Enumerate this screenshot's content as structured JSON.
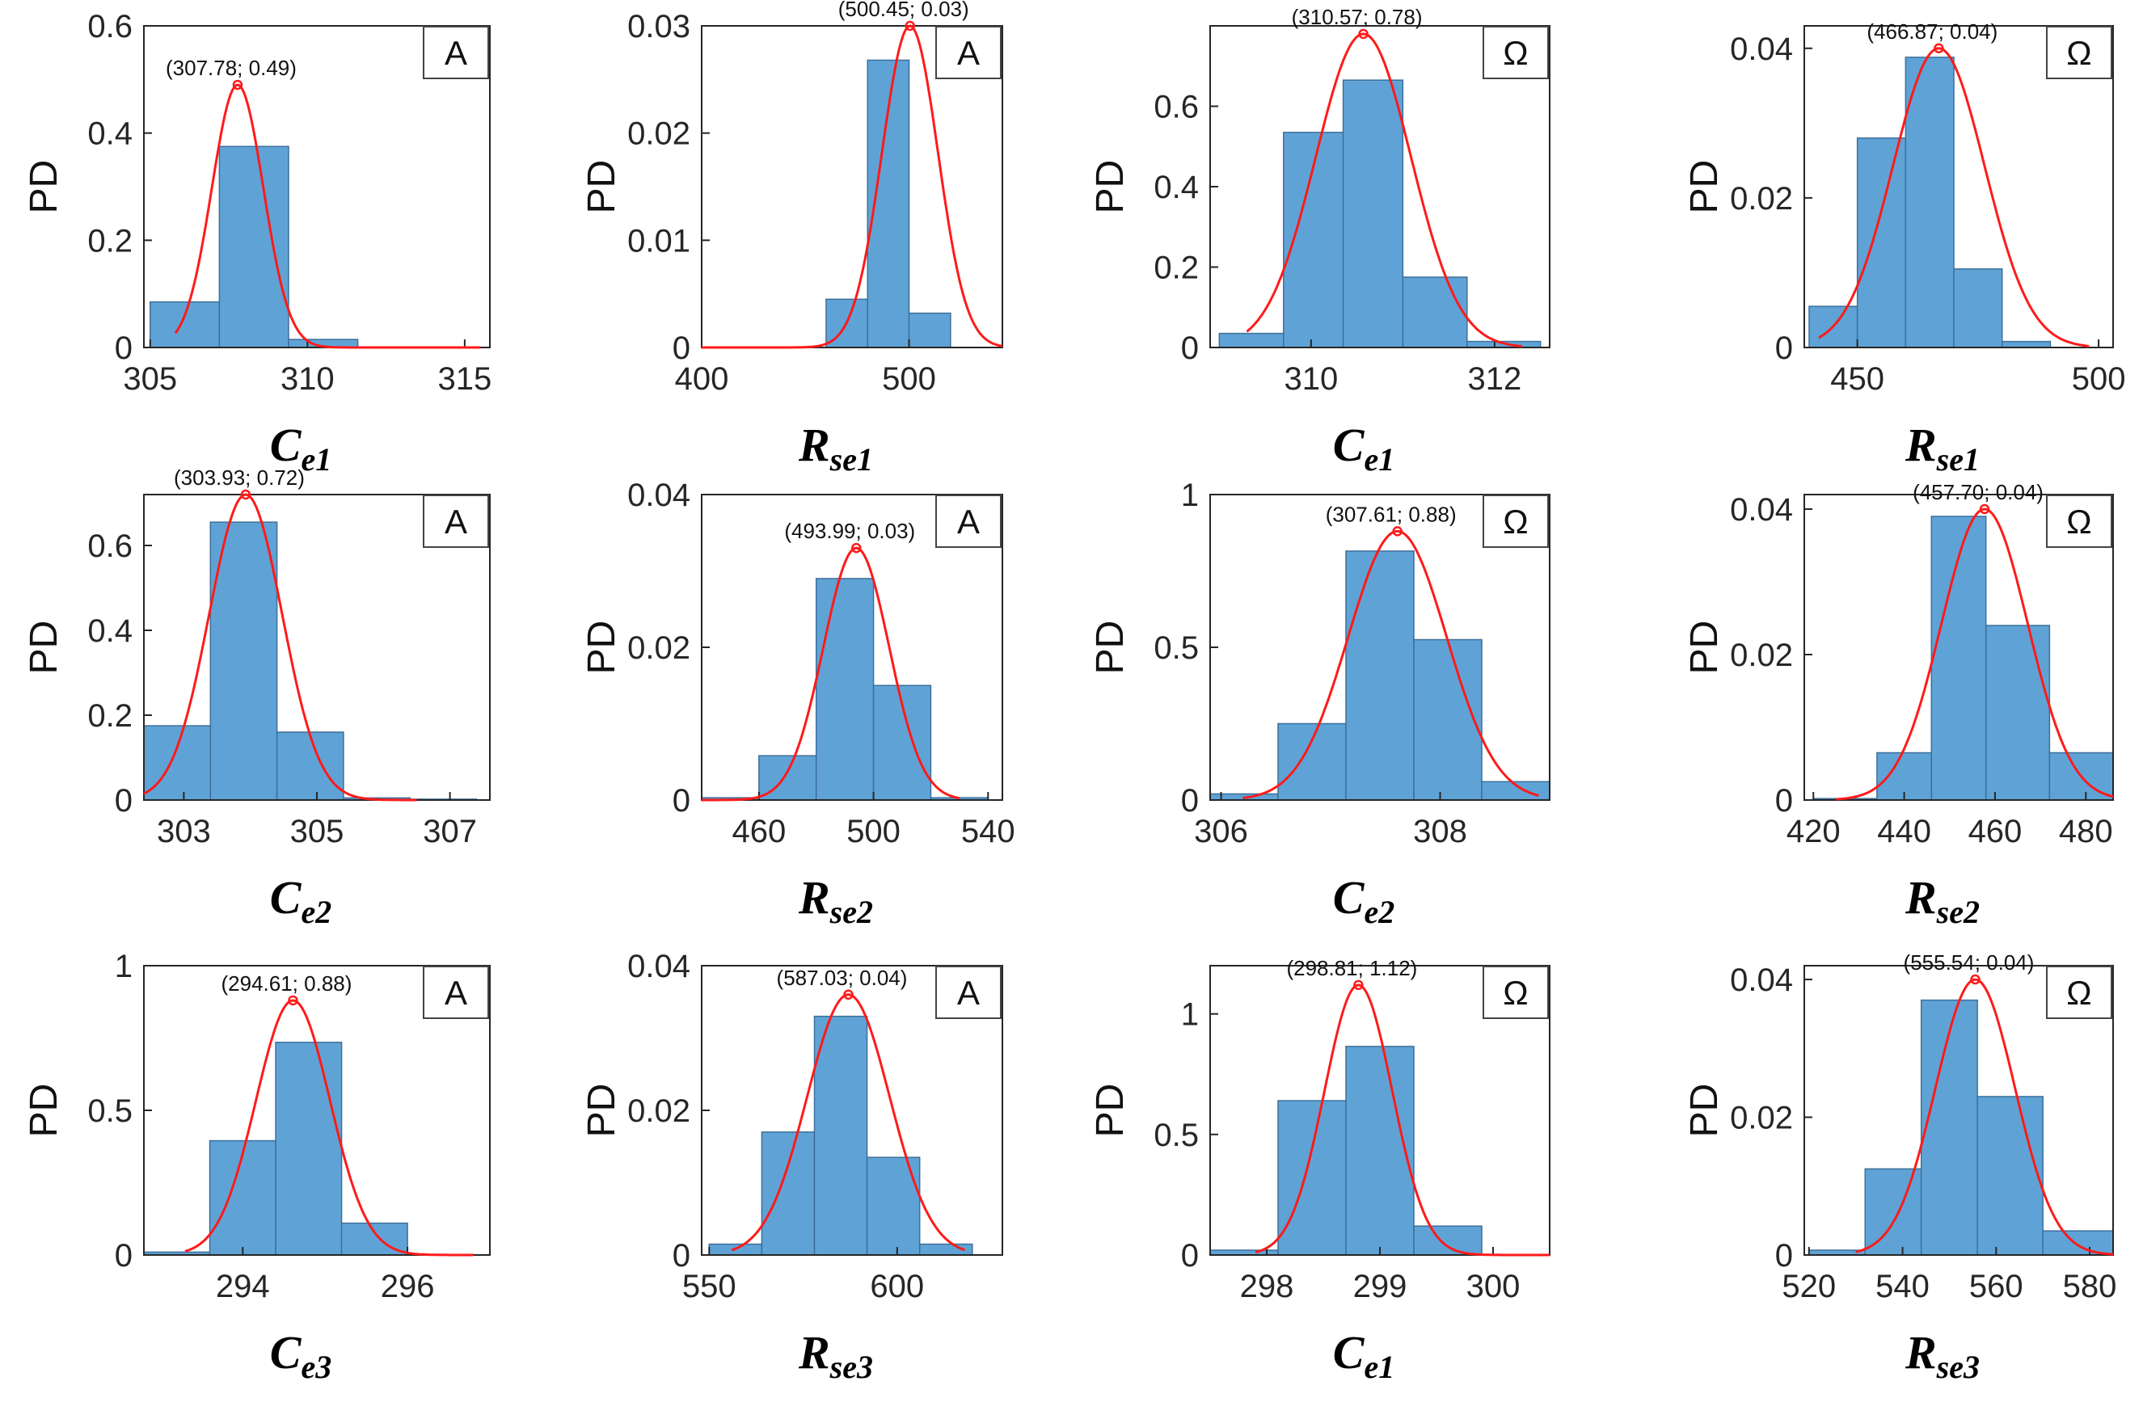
{
  "chart_data": [
    {
      "type": "bar",
      "ylabel": "PD",
      "xlabel": "",
      "unit": "A",
      "param": "C",
      "param_sub": "e1",
      "peak_label": "(307.78; 0.49)",
      "peak": [
        307.78,
        0.49
      ],
      "sigma": 0.82,
      "xlim": [
        304.8,
        315.8
      ],
      "ylim": [
        0,
        0.6
      ],
      "xticks": [
        305,
        310,
        315
      ],
      "yticks": [
        0,
        0.2,
        0.4,
        0.6
      ],
      "bin_edges": [
        305.0,
        307.2,
        309.4,
        311.6,
        313.8,
        316.0
      ],
      "values": [
        0.085,
        0.375,
        0.015,
        0.0,
        0.0
      ],
      "curve_range": [
        305.8,
        315.5
      ]
    },
    {
      "type": "bar",
      "ylabel": "PD",
      "xlabel": "",
      "unit": "A",
      "param": "R",
      "param_sub": "se1",
      "peak_label": "(500.45; 0.03)",
      "peak": [
        500.45,
        0.03
      ],
      "sigma": 13.5,
      "xlim": [
        400,
        545
      ],
      "ylim": [
        0,
        0.03
      ],
      "xticks": [
        400,
        500
      ],
      "yticks": [
        0,
        0.01,
        0.02,
        0.03
      ],
      "bin_edges": [
        460,
        480,
        500,
        520,
        545
      ],
      "values": [
        0.0045,
        0.0268,
        0.0032,
        0.0
      ],
      "curve_range": [
        400,
        545
      ]
    },
    {
      "type": "bar",
      "ylabel": "PD",
      "xlabel": "",
      "unit": "Ω",
      "param": "C",
      "param_sub": "e1",
      "peak_label": "(310.57; 0.78)",
      "peak": [
        310.57,
        0.78
      ],
      "sigma": 0.52,
      "xlim": [
        308.9,
        312.6
      ],
      "ylim": [
        0,
        0.8
      ],
      "xticks": [
        310,
        312
      ],
      "yticks": [
        0,
        0.2,
        0.4,
        0.6
      ],
      "bin_edges": [
        309.0,
        309.7,
        310.35,
        311.0,
        311.7,
        312.5
      ],
      "values": [
        0.035,
        0.535,
        0.665,
        0.175,
        0.015
      ],
      "curve_range": [
        309.3,
        312.3
      ]
    },
    {
      "type": "bar",
      "ylabel": "PD",
      "xlabel": "",
      "unit": "Ω",
      "param": "R",
      "param_sub": "se1",
      "peak_label": "(466.87; 0.04)",
      "peak": [
        466.87,
        0.04
      ],
      "sigma": 9.5,
      "xlim": [
        439,
        503
      ],
      "ylim": [
        0,
        0.043
      ],
      "xticks": [
        450,
        500
      ],
      "yticks": [
        0,
        0.02,
        0.04
      ],
      "bin_edges": [
        440,
        450,
        460,
        470,
        480,
        490,
        500
      ],
      "values": [
        0.0055,
        0.028,
        0.0388,
        0.0105,
        0.0008,
        0.0
      ],
      "curve_range": [
        442,
        498
      ]
    },
    {
      "type": "bar",
      "ylabel": "PD",
      "xlabel": "",
      "unit": "A",
      "param": "C",
      "param_sub": "e2",
      "peak_label": "(303.93; 0.72)",
      "peak": [
        303.93,
        0.72
      ],
      "sigma": 0.55,
      "xlim": [
        302.4,
        307.6
      ],
      "ylim": [
        0,
        0.72
      ],
      "xticks": [
        303,
        305,
        307
      ],
      "yticks": [
        0,
        0.2,
        0.4,
        0.6
      ],
      "bin_edges": [
        302.4,
        303.4,
        304.4,
        305.4,
        306.4,
        307.4
      ],
      "values": [
        0.175,
        0.655,
        0.16,
        0.005,
        0.002
      ],
      "curve_range": [
        302.4,
        306.5
      ]
    },
    {
      "type": "bar",
      "ylabel": "PD",
      "xlabel": "",
      "unit": "A",
      "param": "R",
      "param_sub": "se2",
      "peak_label": "(493.99; 0.03)",
      "peak": [
        493.99,
        0.033
      ],
      "sigma": 11.5,
      "xlim": [
        440,
        545
      ],
      "ylim": [
        0,
        0.04
      ],
      "xticks": [
        460,
        500,
        540
      ],
      "yticks": [
        0,
        0.02,
        0.04
      ],
      "bin_edges": [
        440,
        460,
        480,
        500,
        520,
        540
      ],
      "values": [
        0.0003,
        0.0058,
        0.029,
        0.015,
        0.0003
      ],
      "curve_range": [
        440,
        530
      ]
    },
    {
      "type": "bar",
      "ylabel": "PD",
      "xlabel": "",
      "unit": "Ω",
      "param": "C",
      "param_sub": "e2",
      "peak_label": "(307.61; 0.88)",
      "peak": [
        307.61,
        0.88
      ],
      "sigma": 0.45,
      "xlim": [
        305.9,
        309.0
      ],
      "ylim": [
        0,
        1
      ],
      "xticks": [
        306,
        308
      ],
      "yticks": [
        0,
        0.5,
        1
      ],
      "bin_edges": [
        305.9,
        306.52,
        307.14,
        307.76,
        308.38,
        309.0
      ],
      "values": [
        0.02,
        0.25,
        0.815,
        0.525,
        0.06
      ],
      "curve_range": [
        306.2,
        308.9
      ]
    },
    {
      "type": "bar",
      "ylabel": "PD",
      "xlabel": "",
      "unit": "Ω",
      "param": "R",
      "param_sub": "se2",
      "peak_label": "(457.70; 0.04)",
      "peak": [
        457.7,
        0.04
      ],
      "sigma": 9.5,
      "xlim": [
        418,
        486
      ],
      "ylim": [
        0,
        0.042
      ],
      "xticks": [
        420,
        440,
        460,
        480
      ],
      "yticks": [
        0,
        0.02,
        0.04
      ],
      "bin_edges": [
        420,
        434,
        446,
        458,
        472,
        486
      ],
      "values": [
        0.0002,
        0.0065,
        0.039,
        0.024,
        0.0065
      ],
      "curve_range": [
        425,
        486
      ]
    },
    {
      "type": "bar",
      "ylabel": "PD",
      "xlabel": "",
      "unit": "A",
      "param": "C",
      "param_sub": "e3",
      "peak_label": "(294.61; 0.88)",
      "peak": [
        294.61,
        0.88
      ],
      "sigma": 0.45,
      "xlim": [
        292.8,
        297.0
      ],
      "ylim": [
        0,
        1
      ],
      "xticks": [
        294,
        296
      ],
      "yticks": [
        0,
        0.5,
        1
      ],
      "bin_edges": [
        292.8,
        293.6,
        294.4,
        295.2,
        296.0,
        296.8
      ],
      "values": [
        0.01,
        0.395,
        0.735,
        0.11,
        0.0
      ],
      "curve_range": [
        293.3,
        296.8
      ]
    },
    {
      "type": "bar",
      "ylabel": "PD",
      "xlabel": "",
      "unit": "A",
      "param": "R",
      "param_sub": "se3",
      "peak_label": "(587.03; 0.04)",
      "peak": [
        587.03,
        0.036
      ],
      "sigma": 11,
      "xlim": [
        548,
        628
      ],
      "ylim": [
        0,
        0.04
      ],
      "xticks": [
        550,
        600
      ],
      "yticks": [
        0,
        0.02,
        0.04
      ],
      "bin_edges": [
        550,
        564,
        578,
        592,
        606,
        620
      ],
      "values": [
        0.0015,
        0.017,
        0.033,
        0.0135,
        0.0015
      ],
      "curve_range": [
        556,
        618
      ]
    },
    {
      "type": "bar",
      "ylabel": "PD",
      "xlabel": "",
      "unit": "Ω",
      "param": "C",
      "param_sub": "e1",
      "peak_label": "(298.81; 1.12)",
      "peak": [
        298.81,
        1.12
      ],
      "sigma": 0.3,
      "xlim": [
        297.5,
        300.5
      ],
      "ylim": [
        0,
        1.2
      ],
      "xticks": [
        298,
        299,
        300
      ],
      "yticks": [
        0,
        0.5,
        1
      ],
      "bin_edges": [
        297.5,
        298.1,
        298.7,
        299.3,
        299.9,
        300.5
      ],
      "values": [
        0.02,
        0.64,
        0.865,
        0.12,
        0.0
      ],
      "curve_range": [
        297.9,
        300.5
      ]
    },
    {
      "type": "bar",
      "ylabel": "PD",
      "xlabel": "",
      "unit": "Ω",
      "param": "R",
      "param_sub": "se3",
      "peak_label": "(555.54; 0.04)",
      "peak": [
        555.54,
        0.04
      ],
      "sigma": 8.5,
      "xlim": [
        519,
        585
      ],
      "ylim": [
        0,
        0.042
      ],
      "xticks": [
        520,
        540,
        560,
        580
      ],
      "yticks": [
        0,
        0.02,
        0.04
      ],
      "bin_edges": [
        520,
        532,
        544,
        556,
        570,
        585
      ],
      "values": [
        0.0007,
        0.0125,
        0.037,
        0.023,
        0.0035
      ],
      "curve_range": [
        530,
        585
      ]
    }
  ]
}
